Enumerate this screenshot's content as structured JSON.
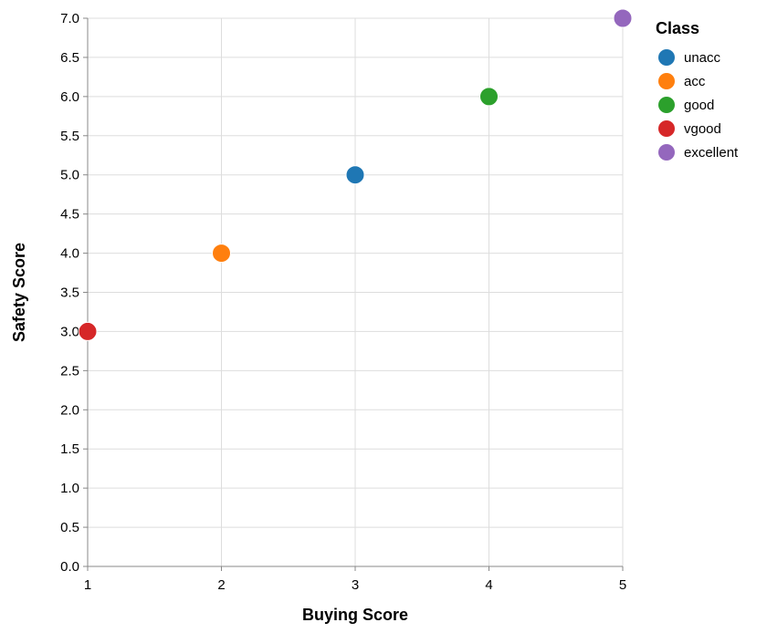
{
  "chart_data": {
    "type": "scatter",
    "title": "",
    "xlabel": "Buying Score",
    "ylabel": "Safety Score",
    "xlim": [
      1,
      5
    ],
    "ylim": [
      0,
      7
    ],
    "x_ticks": [
      "1",
      "2",
      "3",
      "4",
      "5"
    ],
    "y_ticks": [
      "0.0",
      "0.5",
      "1.0",
      "1.5",
      "2.0",
      "2.5",
      "3.0",
      "3.5",
      "4.0",
      "4.5",
      "5.0",
      "5.5",
      "6.0",
      "6.5",
      "7.0"
    ],
    "grid": true,
    "legend": {
      "title": "Class",
      "position": "right"
    },
    "series": [
      {
        "name": "unacc",
        "color": "#1f77b4",
        "points": [
          {
            "x": 3,
            "y": 5
          }
        ]
      },
      {
        "name": "acc",
        "color": "#ff7f0e",
        "points": [
          {
            "x": 2,
            "y": 4
          }
        ]
      },
      {
        "name": "good",
        "color": "#2ca02c",
        "points": [
          {
            "x": 4,
            "y": 6
          }
        ]
      },
      {
        "name": "vgood",
        "color": "#d62728",
        "points": [
          {
            "x": 1,
            "y": 3
          }
        ]
      },
      {
        "name": "excellent",
        "color": "#9467bd",
        "points": [
          {
            "x": 5,
            "y": 7
          }
        ]
      }
    ]
  }
}
